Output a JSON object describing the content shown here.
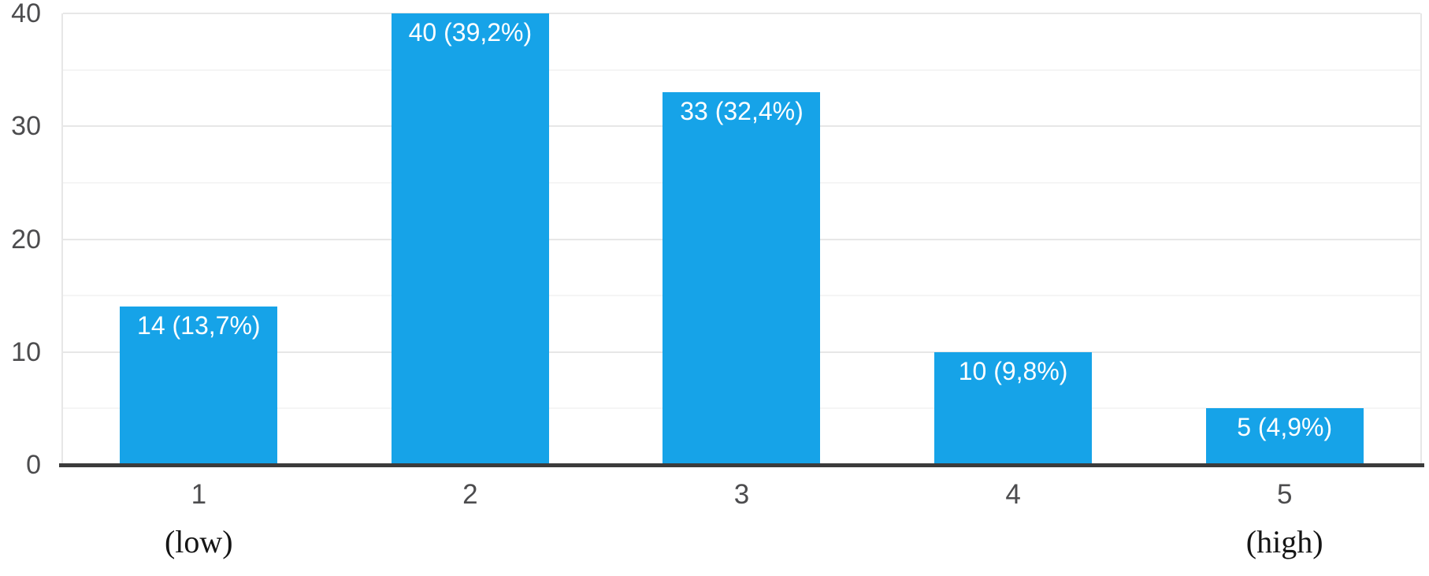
{
  "chart_data": {
    "type": "bar",
    "title": "",
    "categories": [
      "1",
      "2",
      "3",
      "4",
      "5"
    ],
    "values": [
      14,
      40,
      33,
      10,
      5
    ],
    "percentages": [
      13.7,
      39.2,
      32.4,
      9.8,
      4.9
    ],
    "bar_labels": [
      "14 (13,7%)",
      "40 (39,2%)",
      "33 (32,4%)",
      "10 (9,8%)",
      "5 (4,9%)"
    ],
    "sub_labels": [
      "(low)",
      "",
      "",
      "",
      "(high)"
    ],
    "y_ticks": [
      0,
      10,
      20,
      30,
      40
    ],
    "y_minor_ticks": [
      5,
      15,
      25,
      35
    ],
    "ylim": [
      0,
      40
    ],
    "grid": "horizontal",
    "legend": "none",
    "xlabel": "",
    "ylabel": "",
    "bar_color": "#16a3e8",
    "bar_label_color": "#ffffff",
    "axis_line_color": "#3b3b3b",
    "tick_label_color": "#4c4c4e",
    "gridline_major_color": "#e7e7e7",
    "gridline_minor_color": "#f5f5f5",
    "background_color": "#ffffff"
  }
}
